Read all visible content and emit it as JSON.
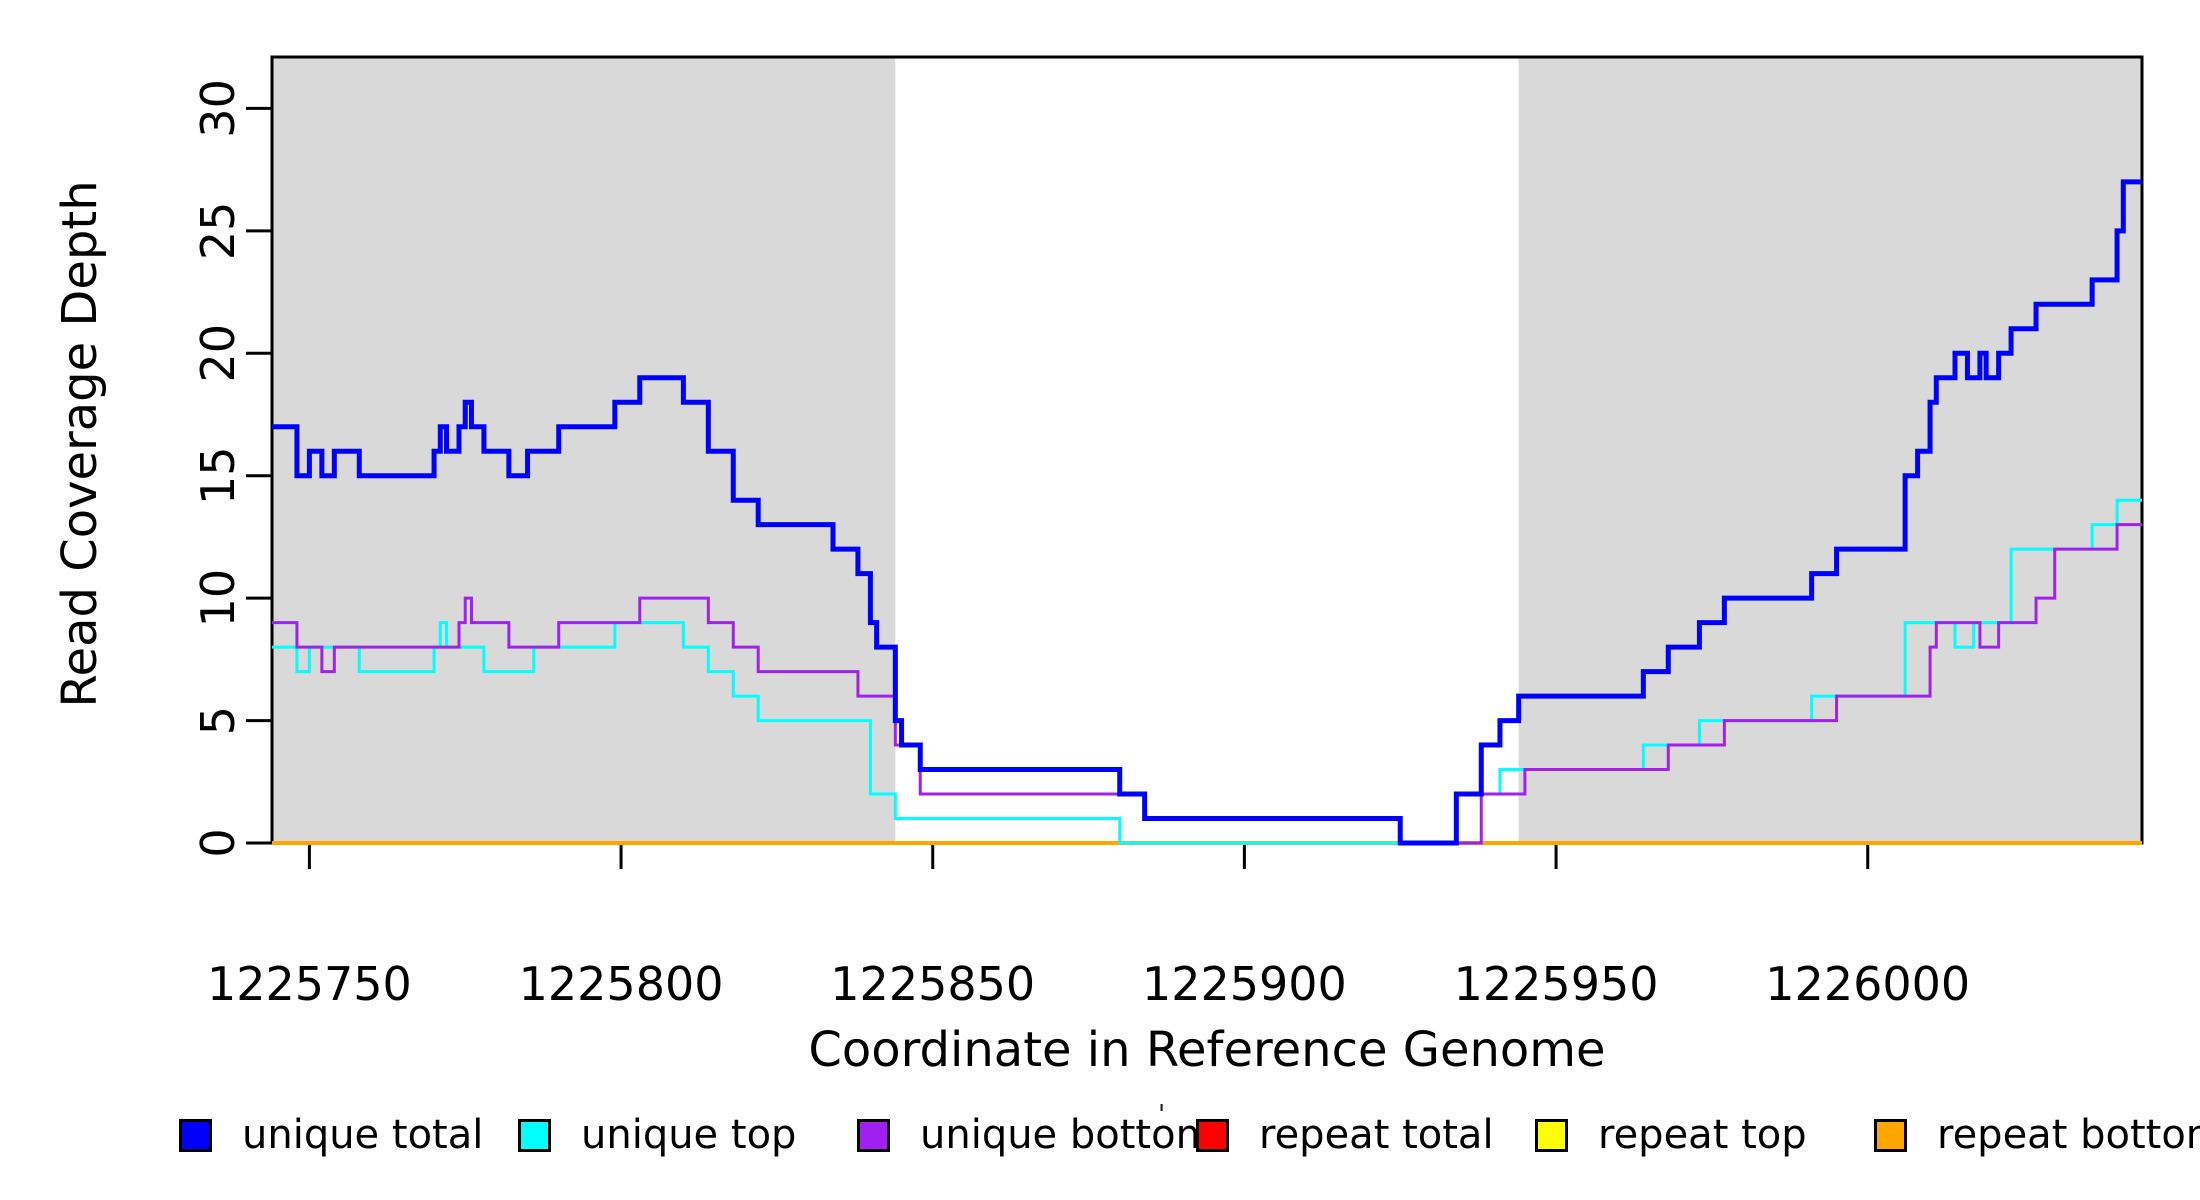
{
  "figure": {
    "xlabel": "Coordinate in Reference Genome",
    "ylabel": "Read Coverage Depth",
    "stray_mark": "'"
  },
  "chart_data": {
    "type": "line",
    "subtype": "step-coverage-plot",
    "title": "",
    "xlabel": "Coordinate in Reference Genome",
    "ylabel": "Read Coverage Depth",
    "xlim": [
      1225744,
      1226044
    ],
    "ylim": [
      0,
      32.1
    ],
    "x_ticks": [
      1225750,
      1225800,
      1225850,
      1225900,
      1225950,
      1226000
    ],
    "y_ticks": [
      0,
      5,
      10,
      15,
      20,
      25,
      30
    ],
    "grid": false,
    "background_color": "#FFFFFF",
    "shade_color": "#D9D9D9",
    "shaded_regions": [
      [
        1225744,
        1225844
      ],
      [
        1225944,
        1226044
      ]
    ],
    "legend_position": "bottom",
    "legend": [
      {
        "label": "unique total",
        "color": "#0000FF"
      },
      {
        "label": "unique top",
        "color": "#00FFFF"
      },
      {
        "label": "unique bottom",
        "color": "#A020F0"
      },
      {
        "label": "repeat total",
        "color": "#FF0000"
      },
      {
        "label": "repeat top",
        "color": "#FFFF00"
      },
      {
        "label": "repeat bottom",
        "color": "#FFA500"
      }
    ],
    "series": [
      {
        "name": "repeat total",
        "color": "#FF0000",
        "width": 3,
        "steps": [
          [
            1225744,
            0
          ]
        ]
      },
      {
        "name": "repeat top",
        "color": "#FFFF00",
        "width": 3,
        "steps": [
          [
            1225744,
            0
          ]
        ]
      },
      {
        "name": "repeat bottom",
        "color": "#FFA500",
        "width": 4,
        "steps": [
          [
            1225744,
            0
          ]
        ]
      },
      {
        "name": "unique top",
        "color": "#00FFFF",
        "width": 3,
        "steps": [
          [
            1225744,
            8
          ],
          [
            1225748,
            7
          ],
          [
            1225750,
            8
          ],
          [
            1225758,
            7
          ],
          [
            1225770,
            8
          ],
          [
            1225771,
            9
          ],
          [
            1225772,
            8
          ],
          [
            1225778,
            7
          ],
          [
            1225786,
            8
          ],
          [
            1225799,
            9
          ],
          [
            1225810,
            8
          ],
          [
            1225814,
            7
          ],
          [
            1225818,
            6
          ],
          [
            1225822,
            5
          ],
          [
            1225840,
            2
          ],
          [
            1225844,
            1
          ],
          [
            1225880,
            0
          ],
          [
            1225934,
            2
          ],
          [
            1225941,
            3
          ],
          [
            1225964,
            4
          ],
          [
            1225973,
            5
          ],
          [
            1225991,
            6
          ],
          [
            1226006,
            9
          ],
          [
            1226014,
            8
          ],
          [
            1226017,
            9
          ],
          [
            1226023,
            12
          ],
          [
            1226036,
            13
          ],
          [
            1226040,
            14
          ]
        ]
      },
      {
        "name": "unique bottom",
        "color": "#A020F0",
        "width": 3,
        "steps": [
          [
            1225744,
            9
          ],
          [
            1225748,
            8
          ],
          [
            1225752,
            7
          ],
          [
            1225754,
            8
          ],
          [
            1225774,
            9
          ],
          [
            1225775,
            10
          ],
          [
            1225776,
            9
          ],
          [
            1225782,
            8
          ],
          [
            1225790,
            9
          ],
          [
            1225803,
            10
          ],
          [
            1225814,
            9
          ],
          [
            1225818,
            8
          ],
          [
            1225822,
            7
          ],
          [
            1225838,
            6
          ],
          [
            1225844,
            4
          ],
          [
            1225848,
            2
          ],
          [
            1225884,
            1
          ],
          [
            1225925,
            0
          ],
          [
            1225938,
            2
          ],
          [
            1225945,
            3
          ],
          [
            1225968,
            4
          ],
          [
            1225977,
            5
          ],
          [
            1225995,
            6
          ],
          [
            1226010,
            8
          ],
          [
            1226011,
            9
          ],
          [
            1226018,
            8
          ],
          [
            1226021,
            9
          ],
          [
            1226027,
            10
          ],
          [
            1226030,
            12
          ],
          [
            1226040,
            13
          ]
        ]
      },
      {
        "name": "unique total",
        "color": "#0000FF",
        "width": 5,
        "steps": [
          [
            1225744,
            17
          ],
          [
            1225748,
            15
          ],
          [
            1225750,
            16
          ],
          [
            1225752,
            15
          ],
          [
            1225754,
            16
          ],
          [
            1225758,
            15
          ],
          [
            1225770,
            16
          ],
          [
            1225771,
            17
          ],
          [
            1225772,
            16
          ],
          [
            1225774,
            17
          ],
          [
            1225775,
            18
          ],
          [
            1225776,
            17
          ],
          [
            1225778,
            16
          ],
          [
            1225782,
            15
          ],
          [
            1225785,
            16
          ],
          [
            1225790,
            17
          ],
          [
            1225799,
            18
          ],
          [
            1225803,
            19
          ],
          [
            1225810,
            18
          ],
          [
            1225814,
            16
          ],
          [
            1225818,
            14
          ],
          [
            1225822,
            13
          ],
          [
            1225834,
            12
          ],
          [
            1225838,
            11
          ],
          [
            1225840,
            9
          ],
          [
            1225841,
            8
          ],
          [
            1225844,
            5
          ],
          [
            1225845,
            4
          ],
          [
            1225848,
            3
          ],
          [
            1225880,
            2
          ],
          [
            1225884,
            1
          ],
          [
            1225925,
            0
          ],
          [
            1225934,
            2
          ],
          [
            1225938,
            4
          ],
          [
            1225941,
            5
          ],
          [
            1225944,
            6
          ],
          [
            1225964,
            7
          ],
          [
            1225968,
            8
          ],
          [
            1225973,
            9
          ],
          [
            1225977,
            10
          ],
          [
            1225991,
            11
          ],
          [
            1225995,
            12
          ],
          [
            1226006,
            15
          ],
          [
            1226008,
            16
          ],
          [
            1226010,
            18
          ],
          [
            1226011,
            19
          ],
          [
            1226014,
            20
          ],
          [
            1226016,
            19
          ],
          [
            1226018,
            20
          ],
          [
            1226019,
            19
          ],
          [
            1226021,
            20
          ],
          [
            1226023,
            21
          ],
          [
            1226027,
            22
          ],
          [
            1226036,
            23
          ],
          [
            1226040,
            25
          ],
          [
            1226041,
            27
          ]
        ]
      }
    ]
  }
}
